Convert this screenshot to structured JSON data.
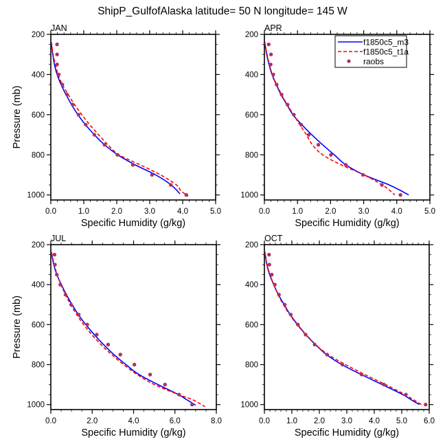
{
  "figure": {
    "title": "ShipP_GulfofAlaska  latitude= 50 N longitude= 145 W"
  },
  "legend": {
    "placement": "top-right of APR panel",
    "entries": [
      {
        "name": "f1850c5_m3",
        "style": "solid-line",
        "color": "#0000ff"
      },
      {
        "name": "f1850c5_t1a",
        "style": "dashed-line",
        "color": "#ff0000"
      },
      {
        "name": "raobs",
        "style": "marker",
        "color": "#b0305f"
      }
    ]
  },
  "chart_data": [
    {
      "type": "line",
      "title": "JAN",
      "xlabel": "Specific Humidity (g/kg)",
      "ylabel": "Pressure (mb)",
      "xlim": [
        0,
        5
      ],
      "ylim": [
        1025,
        200
      ],
      "y_inverted": true,
      "xticks": [
        "0.0",
        "1.0",
        "2.0",
        "3.0",
        "4.0",
        "5.0"
      ],
      "yticks": [
        "200",
        "400",
        "600",
        "800",
        "1000"
      ],
      "grid": false,
      "series": [
        {
          "name": "f1850c5_m3",
          "x": [
            0.01,
            0.06,
            0.11,
            0.19,
            0.31,
            0.46,
            0.63,
            0.82,
            1.05,
            1.32,
            1.63,
            2.03,
            2.56,
            3.18,
            3.65,
            3.92
          ],
          "y": [
            237,
            300,
            350,
            400,
            450,
            500,
            550,
            600,
            650,
            700,
            750,
            800,
            850,
            900,
            950,
            995
          ]
        },
        {
          "name": "f1850c5_t1a",
          "x": [
            0.02,
            0.07,
            0.14,
            0.22,
            0.35,
            0.53,
            0.72,
            0.94,
            1.18,
            1.45,
            1.73,
            2.07,
            2.71,
            3.33,
            3.81,
            3.95,
            4.17
          ],
          "y": [
            240,
            300,
            350,
            400,
            450,
            500,
            550,
            600,
            650,
            700,
            750,
            800,
            850,
            900,
            950,
            980,
            1005
          ]
        },
        {
          "name": "raobs",
          "x": [
            0.19,
            0.19,
            0.19,
            0.24,
            0.35,
            0.49,
            0.66,
            0.84,
            1.06,
            1.32,
            1.63,
            2.02,
            2.49,
            3.07,
            3.64,
            4.11
          ],
          "y": [
            250,
            300,
            350,
            400,
            450,
            500,
            550,
            600,
            650,
            700,
            750,
            800,
            850,
            900,
            950,
            1000
          ]
        }
      ]
    },
    {
      "type": "line",
      "title": "APR",
      "xlabel": "Specific Humidity (g/kg)",
      "ylabel": "",
      "xlim": [
        0,
        5
      ],
      "ylim": [
        1025,
        200
      ],
      "y_inverted": true,
      "xticks": [
        "0.0",
        "1.0",
        "2.0",
        "3.0",
        "4.0",
        "5.0"
      ],
      "yticks": [
        "200",
        "400",
        "600",
        "800",
        "1000"
      ],
      "grid": false,
      "series": [
        {
          "name": "f1850c5_m3",
          "x": [
            0.01,
            0.07,
            0.14,
            0.23,
            0.36,
            0.5,
            0.68,
            0.86,
            1.13,
            1.43,
            1.76,
            2.11,
            2.46,
            3.01,
            3.77,
            4.08,
            4.36
          ],
          "y": [
            237,
            300,
            350,
            400,
            450,
            500,
            550,
            600,
            650,
            700,
            750,
            800,
            850,
            900,
            950,
            975,
            1000
          ]
        },
        {
          "name": "f1850c5_t1a",
          "x": [
            0.01,
            0.08,
            0.15,
            0.24,
            0.37,
            0.52,
            0.69,
            0.88,
            1.07,
            1.27,
            1.45,
            1.76,
            2.32,
            3.01,
            3.56,
            3.77,
            3.94
          ],
          "y": [
            240,
            300,
            350,
            400,
            450,
            500,
            550,
            600,
            650,
            700,
            750,
            800,
            850,
            900,
            950,
            975,
            1000
          ]
        },
        {
          "name": "raobs",
          "x": [
            0.13,
            0.2,
            0.19,
            0.27,
            0.37,
            0.52,
            0.7,
            0.89,
            1.11,
            1.34,
            1.63,
            2.01,
            2.46,
            2.98,
            3.55,
            4.11
          ],
          "y": [
            250,
            300,
            350,
            400,
            450,
            500,
            550,
            600,
            650,
            700,
            750,
            800,
            850,
            900,
            950,
            1000
          ]
        }
      ]
    },
    {
      "type": "line",
      "title": "JUL",
      "xlabel": "Specific Humidity (g/kg)",
      "ylabel": "Pressure (mb)",
      "xlim": [
        0,
        8
      ],
      "ylim": [
        1025,
        200
      ],
      "y_inverted": true,
      "xticks": [
        "0.0",
        "2.0",
        "4.0",
        "6.0",
        "8.0"
      ],
      "yticks": [
        "200",
        "400",
        "600",
        "800",
        "1000"
      ],
      "grid": false,
      "series": [
        {
          "name": "f1850c5_m3",
          "x": [
            0.03,
            0.14,
            0.29,
            0.51,
            0.75,
            1.03,
            1.33,
            1.69,
            2.1,
            2.55,
            3.05,
            3.63,
            4.27,
            5.18,
            6.17,
            6.56,
            7.0
          ],
          "y": [
            237,
            300,
            350,
            400,
            450,
            500,
            550,
            600,
            650,
            700,
            750,
            800,
            850,
            900,
            950,
            975,
            1003
          ]
        },
        {
          "name": "f1850c5_t1a",
          "x": [
            0.03,
            0.17,
            0.3,
            0.49,
            0.71,
            0.96,
            1.25,
            1.59,
            1.98,
            2.43,
            2.94,
            3.52,
            4.18,
            5.01,
            6.17,
            6.84,
            7.45
          ],
          "y": [
            240,
            300,
            350,
            400,
            450,
            500,
            550,
            600,
            650,
            700,
            750,
            800,
            850,
            900,
            950,
            975,
            1010
          ]
        },
        {
          "name": "raobs",
          "x": [
            0.18,
            0.2,
            0.29,
            0.46,
            0.71,
            0.98,
            1.35,
            1.76,
            2.22,
            2.77,
            3.36,
            4.04,
            4.8,
            5.52,
            6.2,
            6.83
          ],
          "y": [
            250,
            300,
            350,
            400,
            450,
            500,
            550,
            600,
            650,
            700,
            750,
            800,
            850,
            900,
            950,
            1000
          ]
        }
      ]
    },
    {
      "type": "line",
      "title": "OCT",
      "xlabel": "Specific Humidity (g/kg)",
      "ylabel": "",
      "xlim": [
        0,
        6
      ],
      "ylim": [
        1025,
        200
      ],
      "y_inverted": true,
      "xticks": [
        "0.0",
        "1.0",
        "2.0",
        "3.0",
        "4.0",
        "5.0",
        "6.0"
      ],
      "yticks": [
        "200",
        "400",
        "600",
        "800",
        "1000"
      ],
      "grid": false,
      "series": [
        {
          "name": "f1850c5_m3",
          "x": [
            0.02,
            0.09,
            0.19,
            0.34,
            0.51,
            0.72,
            0.94,
            1.21,
            1.51,
            1.86,
            2.26,
            2.82,
            3.53,
            4.29,
            5.04,
            5.33,
            5.64
          ],
          "y": [
            237,
            300,
            350,
            400,
            450,
            500,
            550,
            600,
            650,
            700,
            750,
            800,
            850,
            900,
            950,
            975,
            1000
          ]
        },
        {
          "name": "f1850c5_t1a",
          "x": [
            0.02,
            0.09,
            0.21,
            0.34,
            0.5,
            0.69,
            0.92,
            1.19,
            1.5,
            1.86,
            2.32,
            2.95,
            3.66,
            4.41,
            5.12,
            5.42,
            5.72
          ],
          "y": [
            240,
            300,
            350,
            400,
            450,
            500,
            550,
            600,
            650,
            700,
            750,
            800,
            850,
            900,
            950,
            975,
            1000
          ]
        },
        {
          "name": "raobs",
          "x": [
            0.17,
            0.18,
            0.27,
            0.38,
            0.53,
            0.74,
            0.96,
            1.22,
            1.5,
            1.83,
            2.28,
            2.84,
            3.54,
            4.35,
            5.15,
            5.87
          ],
          "y": [
            250,
            300,
            350,
            400,
            450,
            500,
            550,
            600,
            650,
            700,
            750,
            800,
            850,
            900,
            950,
            1000
          ]
        }
      ]
    }
  ]
}
